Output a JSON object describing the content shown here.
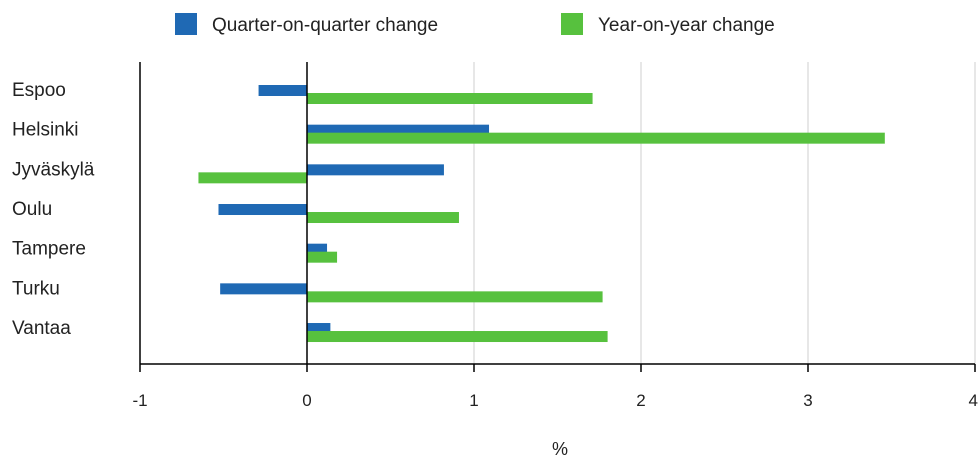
{
  "chart_data": {
    "type": "bar",
    "orientation": "horizontal",
    "title": "",
    "xlabel": "%",
    "ylabel": "",
    "categories": [
      "Espoo",
      "Helsinki",
      "Jyväskylä",
      "Oulu",
      "Tampere",
      "Turku",
      "Vantaa"
    ],
    "series": [
      {
        "name": "Quarter-on-quarter change",
        "color": "#1f69b4",
        "values": [
          -0.29,
          1.09,
          0.82,
          -0.53,
          0.12,
          -0.52,
          0.14
        ]
      },
      {
        "name": "Year-on-year change",
        "color": "#57c13e",
        "values": [
          1.71,
          3.46,
          -0.65,
          0.91,
          0.18,
          1.77,
          1.8
        ]
      }
    ],
    "xlim": [
      -1,
      4
    ],
    "xticks": [
      "-1",
      "0",
      "1",
      "2",
      "3",
      "4"
    ],
    "grid": true,
    "legend_position": "top"
  }
}
